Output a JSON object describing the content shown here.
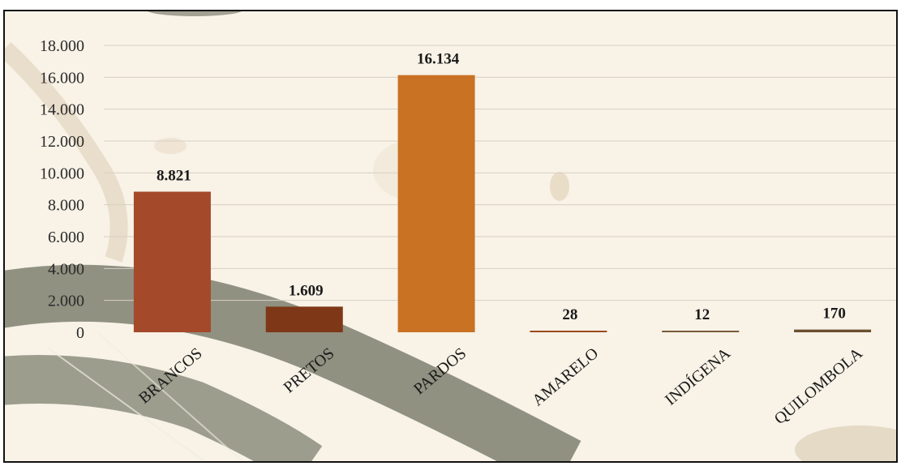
{
  "chart_data": {
    "type": "bar",
    "categories": [
      "BRANCOS",
      "PRETOS",
      "PARDOS",
      "AMARELO",
      "INDÍGENA",
      "QUILOMBOLA"
    ],
    "values": [
      8821,
      1609,
      16134,
      28,
      12,
      170
    ],
    "data_labels": [
      "8.821",
      "1.609",
      "16.134",
      "28",
      "12",
      "170"
    ],
    "bar_colors": [
      "#a4492a",
      "#7e3817",
      "#c97224",
      "#9b4a1d",
      "#7a5b3a",
      "#6a5030"
    ],
    "ylim": [
      0,
      18000
    ],
    "y_ticks": [
      0,
      2000,
      4000,
      6000,
      8000,
      10000,
      12000,
      14000,
      16000,
      18000
    ],
    "y_tick_labels": [
      "0",
      "2.000",
      "4.000",
      "6.000",
      "8.000",
      "10.000",
      "12.000",
      "14.000",
      "16.000",
      "18.000"
    ],
    "grid": true,
    "legend": "none"
  },
  "theme": {
    "background": "#f8f2e7",
    "grid_color": "#d8d0c4",
    "decor_stroke": "#7e806f"
  }
}
